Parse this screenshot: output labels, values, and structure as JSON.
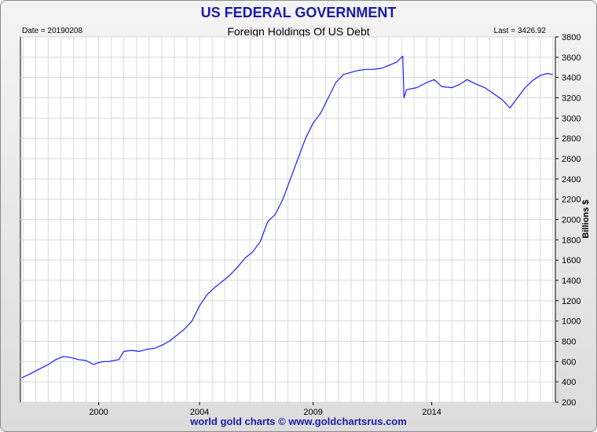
{
  "header": {
    "title": "US FEDERAL GOVERNMENT"
  },
  "subheader": {
    "date": "Date = 20190208",
    "chart_title": "Foreign Holdings Of US Debt",
    "last": "Last = 3426.92"
  },
  "footer": {
    "credit": "world gold charts © www.goldchartsrus.com"
  },
  "colors": {
    "line": "#1a1aff",
    "title": "#1a1aa8",
    "grid": "#d8d8d8"
  },
  "chart_data": {
    "type": "line",
    "title": "Foreign Holdings Of US Debt",
    "ylabel": "Billions $",
    "xlabel": "",
    "ylim": [
      200,
      3800
    ],
    "xlim": [
      1996.9,
      2018.1
    ],
    "yticks": [
      200,
      400,
      600,
      800,
      1000,
      1200,
      1400,
      1600,
      1800,
      2000,
      2200,
      2400,
      2600,
      2800,
      3000,
      3200,
      3400,
      3600,
      3800
    ],
    "xticks": [
      "2000",
      "2004",
      "2009",
      "2014"
    ],
    "xtick_values": [
      2000,
      2004,
      2008.5,
      2013.2
    ],
    "grid": true,
    "series": [
      {
        "x": [
          1996.95,
          1997.3,
          1997.6,
          1998.0,
          1998.3,
          1998.6,
          1998.9,
          1999.2,
          1999.5,
          1999.8,
          2000.0,
          2000.2,
          2000.4,
          2000.6,
          2000.8,
          2001.0,
          2001.3,
          2001.6,
          2001.9,
          2002.2,
          2002.5,
          2002.8,
          2003.1,
          2003.4,
          2003.7,
          2004.0,
          2004.3,
          2004.6,
          2004.9,
          2005.2,
          2005.5,
          2005.8,
          2006.1,
          2006.4,
          2006.7,
          2007.0,
          2007.3,
          2007.6,
          2007.9,
          2008.2,
          2008.5,
          2008.8,
          2009.1,
          2009.4,
          2009.7,
          2010.0,
          2010.3,
          2010.6,
          2010.9,
          2011.2,
          2011.5,
          2011.8,
          2012.05,
          2012.1,
          2012.2,
          2012.6,
          2013.0,
          2013.3,
          2013.6,
          2014.0,
          2014.3,
          2014.6,
          2015.0,
          2015.3,
          2015.6,
          2016.0,
          2016.3,
          2016.6,
          2016.9,
          2017.2,
          2017.5,
          2017.8,
          2018.0
        ],
        "y": [
          440,
          480,
          520,
          570,
          620,
          650,
          640,
          620,
          610,
          570,
          590,
          600,
          600,
          610,
          620,
          700,
          710,
          700,
          720,
          730,
          760,
          800,
          860,
          920,
          1000,
          1150,
          1260,
          1330,
          1390,
          1450,
          1530,
          1620,
          1680,
          1780,
          1980,
          2050,
          2200,
          2400,
          2600,
          2800,
          2950,
          3050,
          3200,
          3350,
          3430,
          3450,
          3470,
          3480,
          3480,
          3490,
          3520,
          3550,
          3610,
          3200,
          3280,
          3300,
          3350,
          3380,
          3310,
          3300,
          3330,
          3380,
          3330,
          3300,
          3250,
          3180,
          3100,
          3200,
          3300,
          3370,
          3420,
          3440,
          3427
        ]
      }
    ]
  }
}
